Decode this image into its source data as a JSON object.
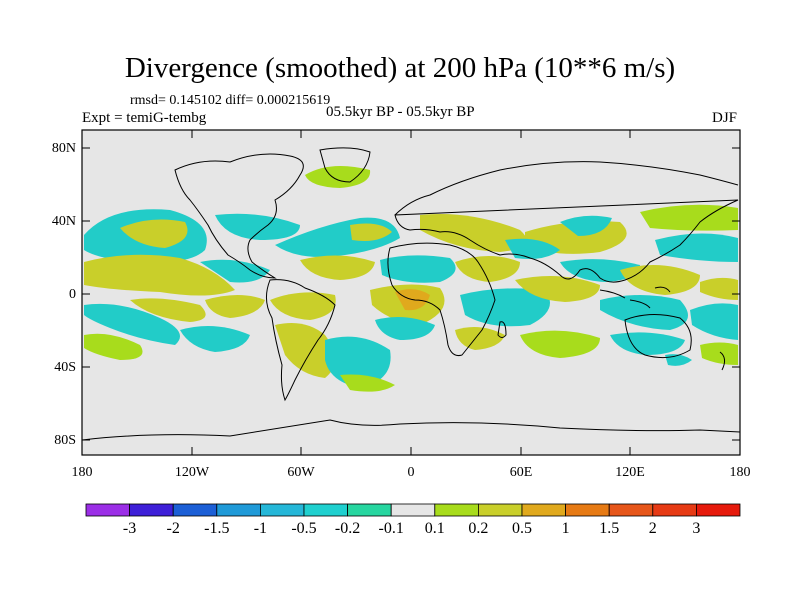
{
  "title": "Divergence (smoothed) at 200 hPa (10**6 m/s)",
  "stats": "rmsd= 0.145102 diff= 0.000215619",
  "experiment": "Expt = temiG-tembg",
  "period": "05.5kyr BP - 05.5kyr BP",
  "season": "DJF",
  "lat_labels": [
    "80N",
    "40N",
    "0",
    "40S",
    "80S"
  ],
  "lon_labels": [
    "180",
    "120W",
    "60W",
    "0",
    "60E",
    "120E",
    "180"
  ],
  "colorbar": {
    "labels": [
      "-3",
      "-2",
      "-1.5",
      "-1",
      "-0.5",
      "-0.2",
      "-0.1",
      "0.1",
      "0.2",
      "0.5",
      "1",
      "1.5",
      "2",
      "3"
    ],
    "colors": [
      "#9b2ee6",
      "#3e1fd8",
      "#1c5fd6",
      "#1f9ad8",
      "#25b7d8",
      "#1fd0cf",
      "#27d6a0",
      "#e6e6e6",
      "#a8dc1c",
      "#c9cf2a",
      "#e0a91d",
      "#e67a14",
      "#e6561a",
      "#e63a14",
      "#e61a0c"
    ]
  },
  "map": {
    "colors": {
      "zero": "#e6e6e6",
      "neg_light": "#22ccc8",
      "neg_mid": "#1f9ad8",
      "pos_light": "#a8dc1c",
      "pos_mid": "#c9cf2a",
      "pos_strong": "#e0a91d"
    }
  }
}
